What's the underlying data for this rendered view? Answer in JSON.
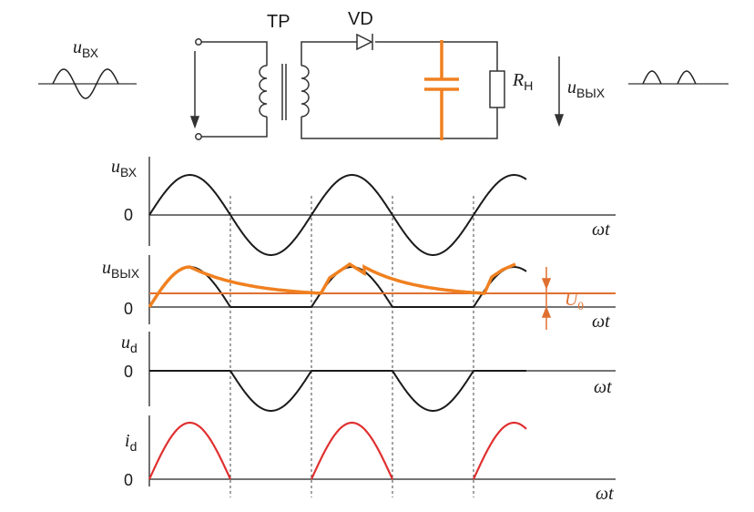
{
  "circuit": {
    "input_var": "u",
    "input_sub": "ВХ",
    "transformer_label": "ТР",
    "diode_label": "VD",
    "load_var": "R",
    "load_sub": "Н",
    "output_var": "u",
    "output_sub": "ВЫХ"
  },
  "plots": {
    "x_axis_label": "ωt",
    "zero_label": "0",
    "input": {
      "var": "u",
      "sub": "ВХ"
    },
    "output": {
      "var": "u",
      "sub": "ВЫХ"
    },
    "diode_voltage": {
      "var": "u",
      "sub": "d"
    },
    "diode_current": {
      "var": "i",
      "sub": "d"
    },
    "ripple_level": {
      "var": "U",
      "sub": "0"
    }
  },
  "colors": {
    "ink": "#1a1a1a",
    "capacitor": "#f08020",
    "current_wave": "#e03030",
    "level_line": "#e07030"
  }
}
